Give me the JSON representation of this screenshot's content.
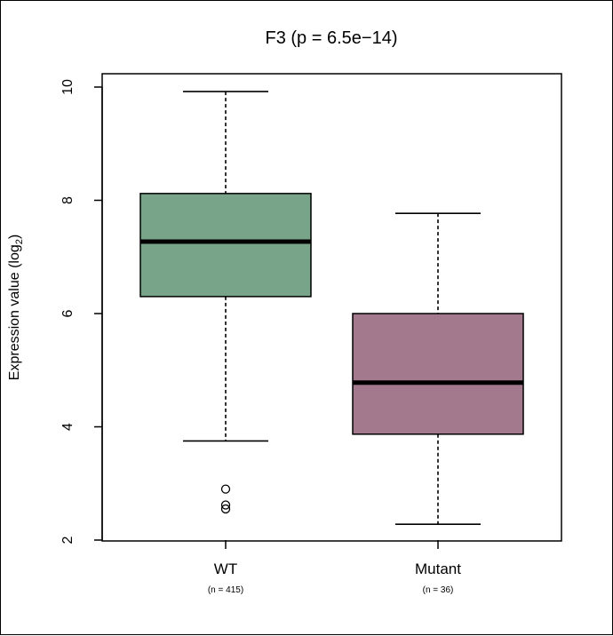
{
  "chart_data": {
    "type": "boxplot",
    "title": "F3 (p = 6.5e−14)",
    "ylabel_main": "Expression value (log",
    "ylabel_sub": "2",
    "ylabel_close": ")",
    "xlabel": "",
    "ylim": [
      2,
      10
    ],
    "yticks": [
      "2",
      "4",
      "6",
      "8",
      "10"
    ],
    "groups": [
      {
        "name": "WT",
        "n_label": "(n = 415)",
        "color": "#78A48A",
        "whisker_low": 3.75,
        "q1": 6.3,
        "median": 7.27,
        "q3": 8.12,
        "whisker_high": 9.92,
        "outliers": [
          2.9,
          2.62,
          2.55
        ]
      },
      {
        "name": "Mutant",
        "n_label": "(n = 36)",
        "color": "#A3798D",
        "whisker_low": 2.28,
        "q1": 3.87,
        "median": 4.78,
        "q3": 6.0,
        "whisker_high": 7.77,
        "outliers": []
      }
    ]
  }
}
